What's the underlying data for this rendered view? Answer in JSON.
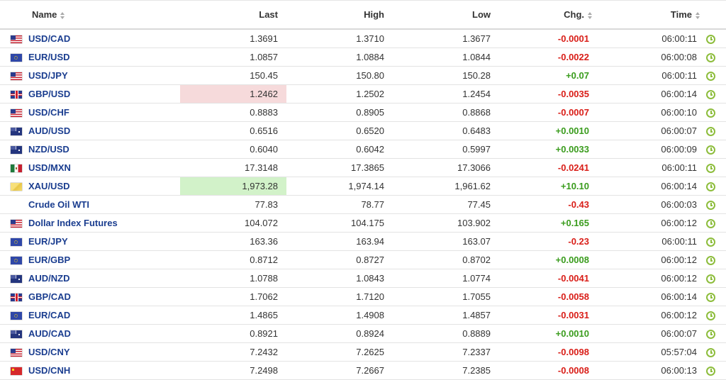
{
  "columns": {
    "name": "Name",
    "last": "Last",
    "high": "High",
    "low": "Low",
    "chg": "Chg.",
    "time": "Time"
  },
  "rows": [
    {
      "flag": "us",
      "name": "USD/CAD",
      "last": "1.3691",
      "high": "1.3710",
      "low": "1.3677",
      "chg": "-0.0001",
      "dir": "neg",
      "time": "06:00:11",
      "highlight": ""
    },
    {
      "flag": "eu",
      "name": "EUR/USD",
      "last": "1.0857",
      "high": "1.0884",
      "low": "1.0844",
      "chg": "-0.0022",
      "dir": "neg",
      "time": "06:00:08",
      "highlight": ""
    },
    {
      "flag": "us",
      "name": "USD/JPY",
      "last": "150.45",
      "high": "150.80",
      "low": "150.28",
      "chg": "+0.07",
      "dir": "pos",
      "time": "06:00:11",
      "highlight": ""
    },
    {
      "flag": "gb",
      "name": "GBP/USD",
      "last": "1.2462",
      "high": "1.2502",
      "low": "1.2454",
      "chg": "-0.0035",
      "dir": "neg",
      "time": "06:00:14",
      "highlight": "red"
    },
    {
      "flag": "us",
      "name": "USD/CHF",
      "last": "0.8883",
      "high": "0.8905",
      "low": "0.8868",
      "chg": "-0.0007",
      "dir": "neg",
      "time": "06:00:10",
      "highlight": ""
    },
    {
      "flag": "au",
      "name": "AUD/USD",
      "last": "0.6516",
      "high": "0.6520",
      "low": "0.6483",
      "chg": "+0.0010",
      "dir": "pos",
      "time": "06:00:07",
      "highlight": ""
    },
    {
      "flag": "au",
      "name": "NZD/USD",
      "last": "0.6040",
      "high": "0.6042",
      "low": "0.5997",
      "chg": "+0.0033",
      "dir": "pos",
      "time": "06:00:09",
      "highlight": ""
    },
    {
      "flag": "mx",
      "name": "USD/MXN",
      "last": "17.3148",
      "high": "17.3865",
      "low": "17.3066",
      "chg": "-0.0241",
      "dir": "neg",
      "time": "06:00:11",
      "highlight": ""
    },
    {
      "flag": "xau",
      "name": "XAU/USD",
      "last": "1,973.28",
      "high": "1,974.14",
      "low": "1,961.62",
      "chg": "+10.10",
      "dir": "pos",
      "time": "06:00:14",
      "highlight": "green"
    },
    {
      "flag": "oil",
      "name": "Crude Oil WTI",
      "last": "77.83",
      "high": "78.77",
      "low": "77.45",
      "chg": "-0.43",
      "dir": "neg",
      "time": "06:00:03",
      "highlight": ""
    },
    {
      "flag": "us",
      "name": "Dollar Index Futures",
      "last": "104.072",
      "high": "104.175",
      "low": "103.902",
      "chg": "+0.165",
      "dir": "pos",
      "time": "06:00:12",
      "highlight": ""
    },
    {
      "flag": "eu",
      "name": "EUR/JPY",
      "last": "163.36",
      "high": "163.94",
      "low": "163.07",
      "chg": "-0.23",
      "dir": "neg",
      "time": "06:00:11",
      "highlight": ""
    },
    {
      "flag": "eu",
      "name": "EUR/GBP",
      "last": "0.8712",
      "high": "0.8727",
      "low": "0.8702",
      "chg": "+0.0008",
      "dir": "pos",
      "time": "06:00:12",
      "highlight": ""
    },
    {
      "flag": "au",
      "name": "AUD/NZD",
      "last": "1.0788",
      "high": "1.0843",
      "low": "1.0774",
      "chg": "-0.0041",
      "dir": "neg",
      "time": "06:00:12",
      "highlight": ""
    },
    {
      "flag": "gb",
      "name": "GBP/CAD",
      "last": "1.7062",
      "high": "1.7120",
      "low": "1.7055",
      "chg": "-0.0058",
      "dir": "neg",
      "time": "06:00:14",
      "highlight": ""
    },
    {
      "flag": "eu",
      "name": "EUR/CAD",
      "last": "1.4865",
      "high": "1.4908",
      "low": "1.4857",
      "chg": "-0.0031",
      "dir": "neg",
      "time": "06:00:12",
      "highlight": ""
    },
    {
      "flag": "au",
      "name": "AUD/CAD",
      "last": "0.8921",
      "high": "0.8924",
      "low": "0.8889",
      "chg": "+0.0010",
      "dir": "pos",
      "time": "06:00:07",
      "highlight": ""
    },
    {
      "flag": "us",
      "name": "USD/CNY",
      "last": "7.2432",
      "high": "7.2625",
      "low": "7.2337",
      "chg": "-0.0098",
      "dir": "neg",
      "time": "05:57:04",
      "highlight": ""
    },
    {
      "flag": "cn",
      "name": "USD/CNH",
      "last": "7.2498",
      "high": "7.2667",
      "low": "7.2385",
      "chg": "-0.0008",
      "dir": "neg",
      "time": "06:00:13",
      "highlight": ""
    }
  ],
  "colors": {
    "positive": "#3a9c1d",
    "negative": "#d91e18",
    "link": "#1a3d8f",
    "clock": "#8dbd3c"
  },
  "icons": {
    "status": "clock-icon",
    "sort": "sort-arrows-icon"
  }
}
